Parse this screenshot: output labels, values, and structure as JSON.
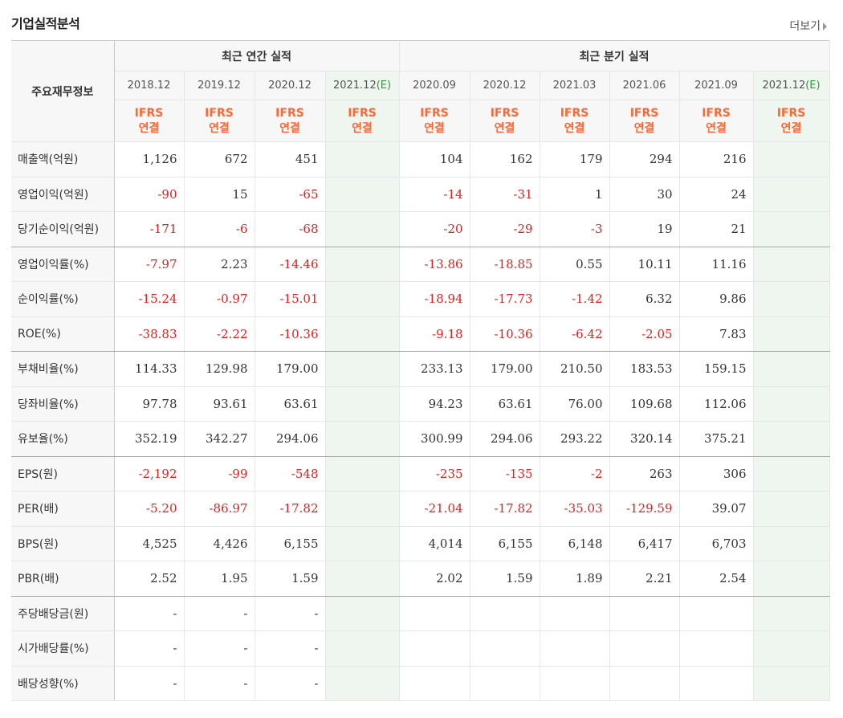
{
  "header": {
    "title": "기업실적분석",
    "more_label": "더보기"
  },
  "table": {
    "row_header_label": "주요재무정보",
    "groups": [
      "최근 연간 실적",
      "최근 분기 실적"
    ],
    "periods": [
      "2018.12",
      "2019.12",
      "2020.12",
      "2021.12",
      "2020.09",
      "2020.12",
      "2021.03",
      "2021.06",
      "2021.09",
      "2021.12"
    ],
    "estimate_mark": "(E)",
    "ifrs_line1": "IFRS",
    "ifrs_line2": "연결",
    "rows": [
      {
        "label": "매출액(억원)",
        "values": [
          "1,126",
          "672",
          "451",
          "",
          "104",
          "162",
          "179",
          "294",
          "216",
          ""
        ]
      },
      {
        "label": "영업이익(억원)",
        "values": [
          "-90",
          "15",
          "-65",
          "",
          "-14",
          "-31",
          "1",
          "30",
          "24",
          ""
        ]
      },
      {
        "label": "당기순이익(억원)",
        "values": [
          "-171",
          "-6",
          "-68",
          "",
          "-20",
          "-29",
          "-3",
          "19",
          "21",
          ""
        ]
      },
      {
        "label": "영업이익률(%)",
        "values": [
          "-7.97",
          "2.23",
          "-14.46",
          "",
          "-13.86",
          "-18.85",
          "0.55",
          "10.11",
          "11.16",
          ""
        ]
      },
      {
        "label": "순이익률(%)",
        "values": [
          "-15.24",
          "-0.97",
          "-15.01",
          "",
          "-18.94",
          "-17.73",
          "-1.42",
          "6.32",
          "9.86",
          ""
        ]
      },
      {
        "label": "ROE(%)",
        "values": [
          "-38.83",
          "-2.22",
          "-10.36",
          "",
          "-9.18",
          "-10.36",
          "-6.42",
          "-2.05",
          "7.83",
          ""
        ]
      },
      {
        "label": "부채비율(%)",
        "values": [
          "114.33",
          "129.98",
          "179.00",
          "",
          "233.13",
          "179.00",
          "210.50",
          "183.53",
          "159.15",
          ""
        ]
      },
      {
        "label": "당좌비율(%)",
        "values": [
          "97.78",
          "93.61",
          "63.61",
          "",
          "94.23",
          "63.61",
          "76.00",
          "109.68",
          "112.06",
          ""
        ]
      },
      {
        "label": "유보율(%)",
        "values": [
          "352.19",
          "342.27",
          "294.06",
          "",
          "300.99",
          "294.06",
          "293.22",
          "320.14",
          "375.21",
          ""
        ]
      },
      {
        "label": "EPS(원)",
        "values": [
          "-2,192",
          "-99",
          "-548",
          "",
          "-235",
          "-135",
          "-2",
          "263",
          "306",
          ""
        ]
      },
      {
        "label": "PER(배)",
        "values": [
          "-5.20",
          "-86.97",
          "-17.82",
          "",
          "-21.04",
          "-17.82",
          "-35.03",
          "-129.59",
          "39.07",
          ""
        ]
      },
      {
        "label": "BPS(원)",
        "values": [
          "4,525",
          "4,426",
          "6,155",
          "",
          "4,014",
          "6,155",
          "6,148",
          "6,417",
          "6,703",
          ""
        ]
      },
      {
        "label": "PBR(배)",
        "values": [
          "2.52",
          "1.95",
          "1.59",
          "",
          "2.02",
          "1.59",
          "1.89",
          "2.21",
          "2.54",
          ""
        ]
      },
      {
        "label": "주당배당금(원)",
        "values": [
          "-",
          "-",
          "-",
          "",
          "",
          "",
          "",
          "",
          "",
          ""
        ]
      },
      {
        "label": "시가배당률(%)",
        "values": [
          "-",
          "-",
          "-",
          "",
          "",
          "",
          "",
          "",
          "",
          ""
        ]
      },
      {
        "label": "배당성향(%)",
        "values": [
          "-",
          "-",
          "-",
          "",
          "",
          "",
          "",
          "",
          "",
          ""
        ]
      }
    ]
  },
  "colors": {
    "negative": "#e02020",
    "ifrs": "#ff6633",
    "estimate_bg": "#eef6ef",
    "estimate_mark": "#2e9a3a"
  }
}
